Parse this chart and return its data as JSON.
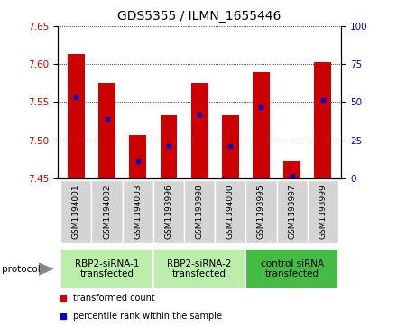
{
  "title": "GDS5355 / ILMN_1655446",
  "samples": [
    "GSM1194001",
    "GSM1194002",
    "GSM1194003",
    "GSM1193996",
    "GSM1193998",
    "GSM1194000",
    "GSM1193995",
    "GSM1193997",
    "GSM1193999"
  ],
  "bar_bottoms": [
    7.45,
    7.45,
    7.45,
    7.45,
    7.45,
    7.45,
    7.45,
    7.45,
    7.45
  ],
  "bar_tops": [
    7.613,
    7.575,
    7.507,
    7.533,
    7.575,
    7.533,
    7.59,
    7.472,
    7.603
  ],
  "blue_markers": [
    7.556,
    7.528,
    7.472,
    7.493,
    7.534,
    7.493,
    7.543,
    7.453,
    7.553
  ],
  "ylim": [
    7.45,
    7.65
  ],
  "y_left_ticks": [
    7.45,
    7.5,
    7.55,
    7.6,
    7.65
  ],
  "y_right_ticks": [
    0,
    25,
    50,
    75,
    100
  ],
  "bar_color": "#cc0000",
  "blue_color": "#0000cc",
  "groups": [
    {
      "label": "RBP2-siRNA-1\ntransfected",
      "start": 0,
      "end": 3,
      "color": "#bbeeaa"
    },
    {
      "label": "RBP2-siRNA-2\ntransfected",
      "start": 3,
      "end": 6,
      "color": "#bbeeaa"
    },
    {
      "label": "control siRNA\ntransfected",
      "start": 6,
      "end": 9,
      "color": "#44bb44"
    }
  ],
  "legend_items": [
    {
      "label": "transformed count",
      "color": "#cc0000"
    },
    {
      "label": "percentile rank within the sample",
      "color": "#0000cc"
    }
  ],
  "protocol_label": "protocol",
  "ylabel_left_color": "#cc0000",
  "ylabel_right_color": "#0000cc",
  "title_fontsize": 10,
  "tick_fontsize": 7.5,
  "sample_fontsize": 6.5,
  "group_label_fontsize": 7.5
}
